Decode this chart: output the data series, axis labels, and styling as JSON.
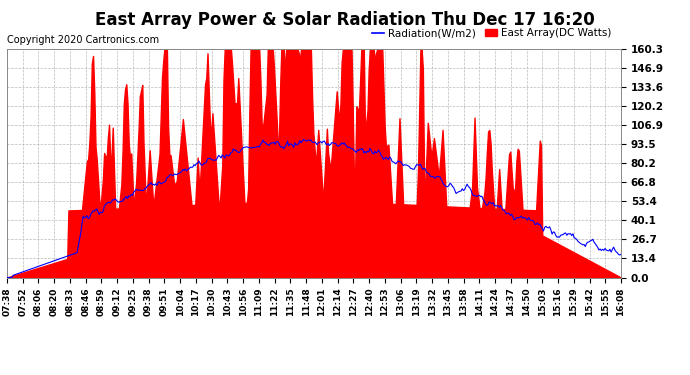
{
  "title": "East Array Power & Solar Radiation Thu Dec 17 16:20",
  "copyright": "Copyright 2020 Cartronics.com",
  "legend_radiation": "Radiation(W/m2)",
  "legend_east_array": "East Array(DC Watts)",
  "legend_radiation_color": "blue",
  "legend_east_array_color": "red",
  "y_tick_labels": [
    "0.0",
    "13.4",
    "26.7",
    "40.1",
    "53.4",
    "66.8",
    "80.2",
    "93.5",
    "106.9",
    "120.2",
    "133.6",
    "146.9",
    "160.3"
  ],
  "y_ticks": [
    0.0,
    13.4,
    26.7,
    40.1,
    53.4,
    66.8,
    80.2,
    93.5,
    106.9,
    120.2,
    133.6,
    146.9,
    160.3
  ],
  "y_max": 160.3,
  "y_min": 0.0,
  "background_color": "#ffffff",
  "plot_bg_color": "#ffffff",
  "grid_color": "#aaaaaa",
  "fill_color": "red",
  "line_color": "blue",
  "title_fontsize": 12,
  "copyright_fontsize": 7,
  "x_label_fontsize": 6.5,
  "y_label_fontsize": 7.5,
  "x_tick_labels": [
    "07:38",
    "07:52",
    "08:06",
    "08:20",
    "08:33",
    "08:46",
    "08:59",
    "09:12",
    "09:25",
    "09:38",
    "09:51",
    "10:04",
    "10:17",
    "10:30",
    "10:43",
    "10:56",
    "11:09",
    "11:22",
    "11:35",
    "11:48",
    "12:01",
    "12:14",
    "12:27",
    "12:40",
    "12:53",
    "13:06",
    "13:19",
    "13:32",
    "13:45",
    "13:58",
    "14:11",
    "14:24",
    "14:37",
    "14:50",
    "15:03",
    "15:16",
    "15:29",
    "15:42",
    "15:55",
    "16:08"
  ]
}
